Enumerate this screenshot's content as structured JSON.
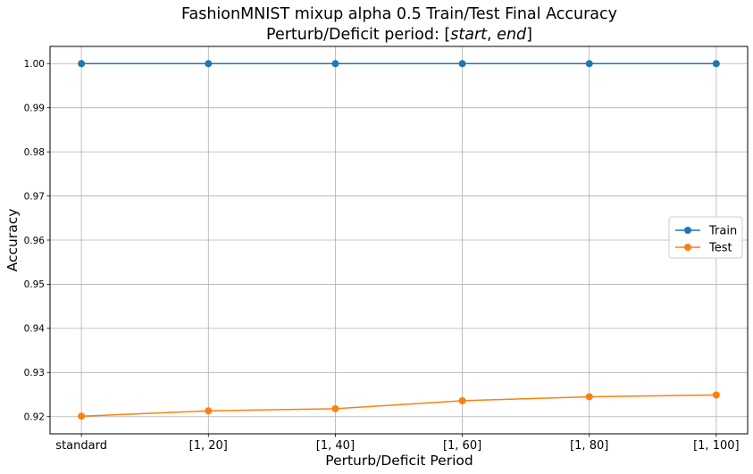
{
  "chart_data": {
    "type": "line",
    "title_line1": "FashionMNIST mixup alpha 0.5 Train/Test Final Accuracy",
    "title_line2_prefix": "Perturb/Deficit period: [",
    "title_line2_start": "start",
    "title_line2_sep": ", ",
    "title_line2_end": "end",
    "title_line2_suffix": "]",
    "xlabel": "Perturb/Deficit Period",
    "ylabel": "Accuracy",
    "categories": [
      "standard",
      "[1, 20]",
      "[1, 40]",
      "[1, 60]",
      "[1, 80]",
      "[1, 100]"
    ],
    "ylim": [
      0.9161,
      1.0039
    ],
    "yticks": [
      0.92,
      0.93,
      0.94,
      0.95,
      0.96,
      0.97,
      0.98,
      0.99,
      1.0
    ],
    "ytick_labels": [
      "0.92",
      "0.93",
      "0.94",
      "0.95",
      "0.96",
      "0.97",
      "0.98",
      "0.99",
      "1.00"
    ],
    "grid": true,
    "legend_position": "center-right",
    "series": [
      {
        "name": "Train",
        "color": "#1f77b4",
        "values": [
          1.0,
          1.0,
          1.0,
          1.0,
          1.0,
          1.0
        ]
      },
      {
        "name": "Test",
        "color": "#ff7f0e",
        "values": [
          0.9201,
          0.9213,
          0.9218,
          0.9236,
          0.9245,
          0.9249
        ]
      }
    ]
  }
}
